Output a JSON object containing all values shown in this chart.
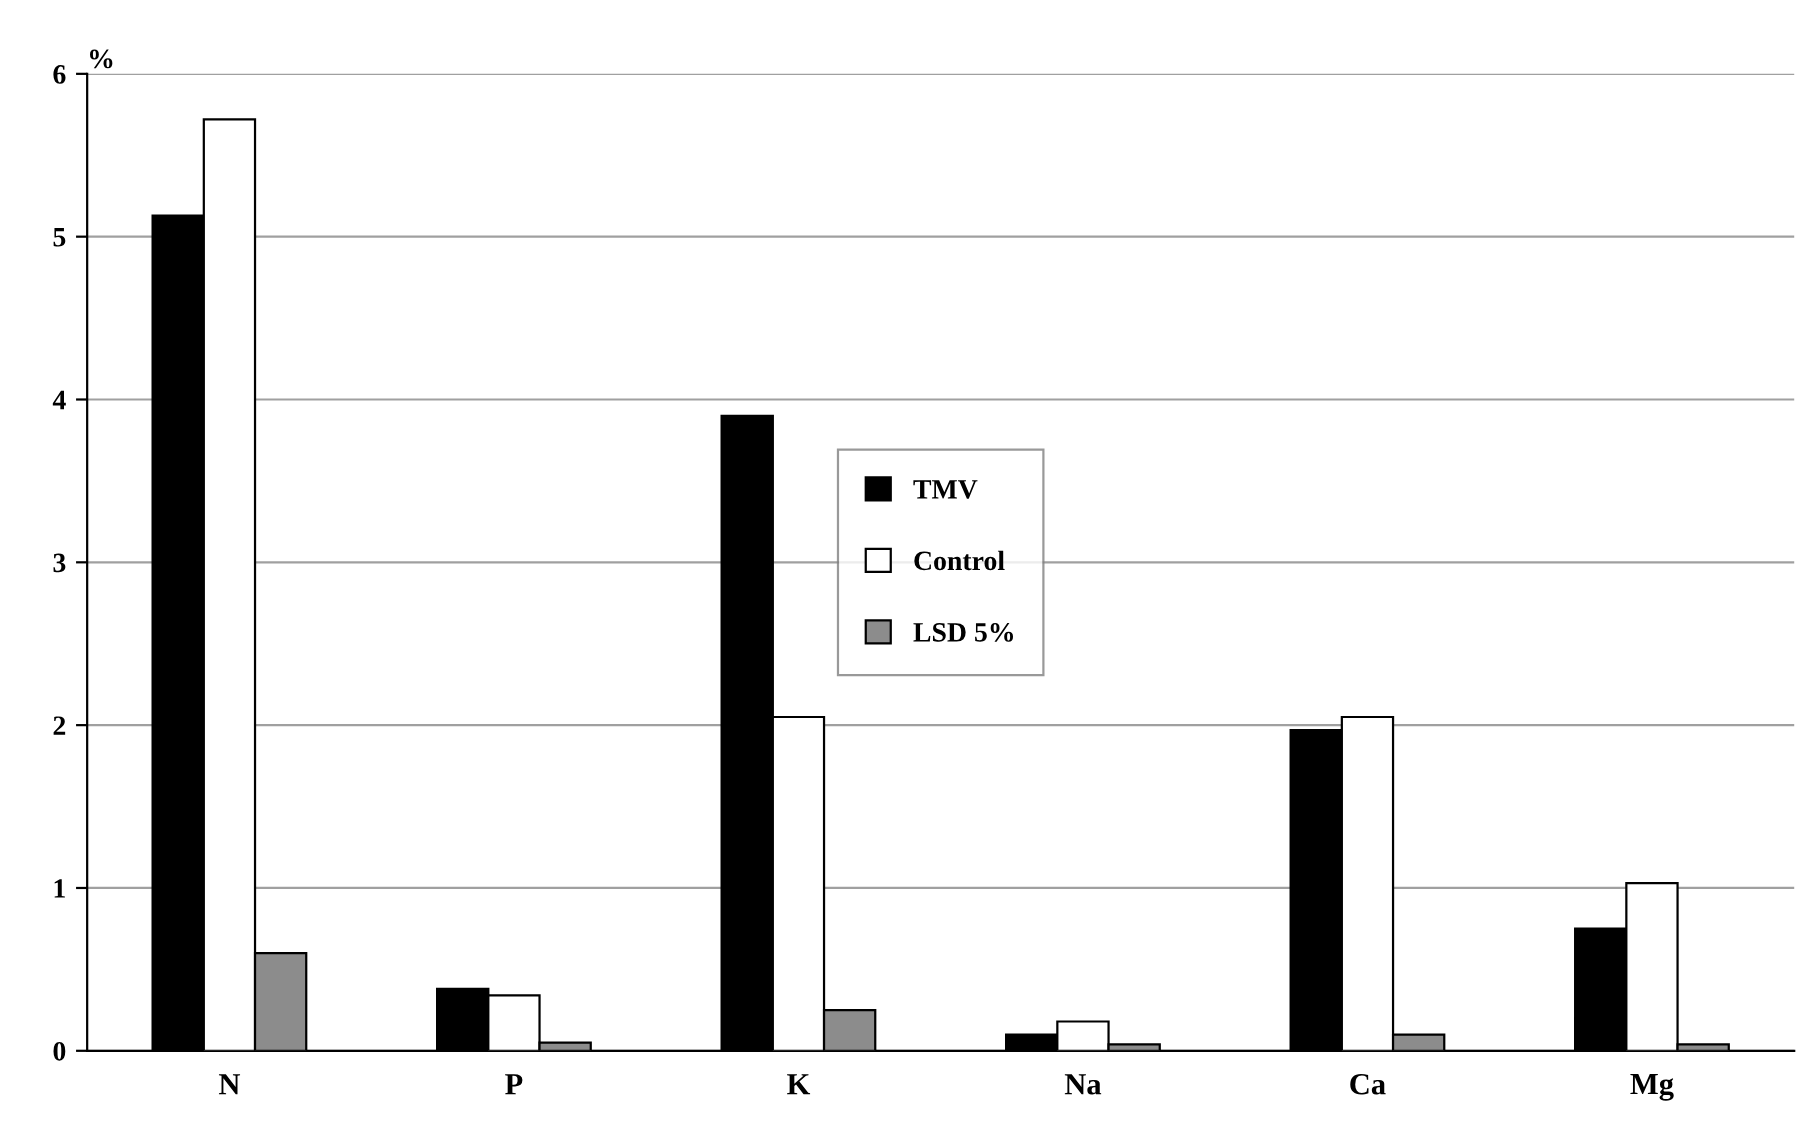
{
  "chart_data": {
    "type": "bar",
    "ylabel": "%",
    "categories": [
      "N",
      "P",
      "K",
      "Na",
      "Ca",
      "Mg"
    ],
    "series": [
      {
        "name": "TMV",
        "color": "#000000",
        "values": [
          5.13,
          0.38,
          3.9,
          0.1,
          1.97,
          0.75
        ]
      },
      {
        "name": "Control",
        "color": "#ffffff",
        "values": [
          5.72,
          0.34,
          2.05,
          0.18,
          2.05,
          1.03
        ]
      },
      {
        "name": "LSD 5%",
        "color": "#8c8c8c",
        "values": [
          0.6,
          0.05,
          0.25,
          0.04,
          0.1,
          0.04
        ]
      }
    ],
    "ylim": [
      0,
      6
    ],
    "yticks": [
      0,
      1,
      2,
      3,
      4,
      5,
      6
    ],
    "grid": "y",
    "legend": "center"
  }
}
